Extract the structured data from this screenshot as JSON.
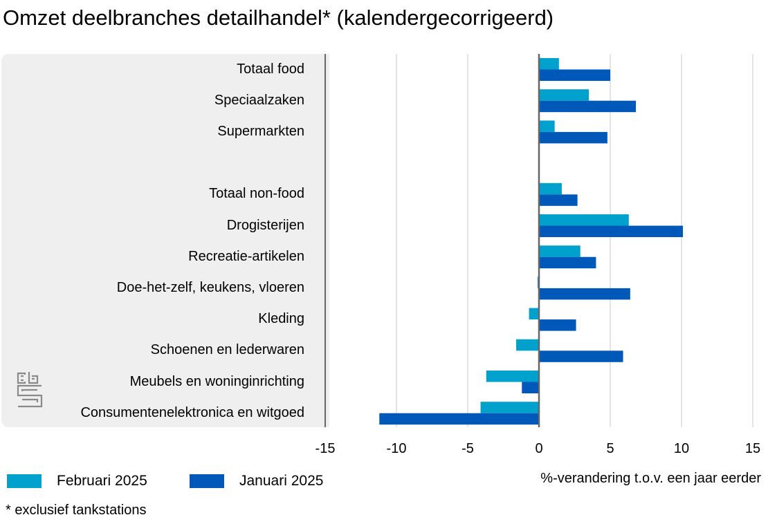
{
  "title": "Omzet deelbranches detailhandel*  (kalendergecorrigeerd)",
  "chart_data": {
    "type": "bar",
    "orientation": "horizontal",
    "title": "Omzet deelbranches detailhandel*  (kalendergecorrigeerd)",
    "xlabel": "%-verandering t.o.v. een jaar eerder",
    "xlim": [
      -15,
      15
    ],
    "xticks": [
      -15,
      -10,
      -5,
      0,
      5,
      10,
      15
    ],
    "xtick_labels": [
      "-15",
      "-10",
      "-5",
      "0",
      "5",
      "10",
      "15"
    ],
    "categories": [
      "Totaal food",
      "Speciaalzaken",
      "Supermarkten",
      "",
      "Totaal non-food",
      "Drogisterijen",
      "Recreatie-artikelen",
      "Doe-het-zelf, keukens, vloeren",
      "Kleding",
      "Schoenen en lederwaren",
      "Meubels en woninginrichting",
      "Consumentenelektronica en witgoed"
    ],
    "series": [
      {
        "name": "Februari 2025",
        "color": "#00a1cd",
        "values": [
          1.4,
          3.5,
          1.1,
          null,
          1.6,
          6.3,
          2.9,
          -0.1,
          -0.7,
          -1.6,
          -3.7,
          -4.1
        ]
      },
      {
        "name": "Januari 2025",
        "color": "#0058b8",
        "values": [
          5.0,
          6.8,
          4.8,
          null,
          2.7,
          10.1,
          4.0,
          6.4,
          2.6,
          5.9,
          -1.2,
          -11.2
        ]
      }
    ],
    "grid": true,
    "legend_position": "bottom-left"
  },
  "legend": [
    {
      "label": "Februari 2025",
      "color": "#00a1cd"
    },
    {
      "label": "Januari 2025",
      "color": "#0058b8"
    }
  ],
  "footnote": "* exclusief tankstations",
  "logo_icon": "cbs-logo-icon"
}
